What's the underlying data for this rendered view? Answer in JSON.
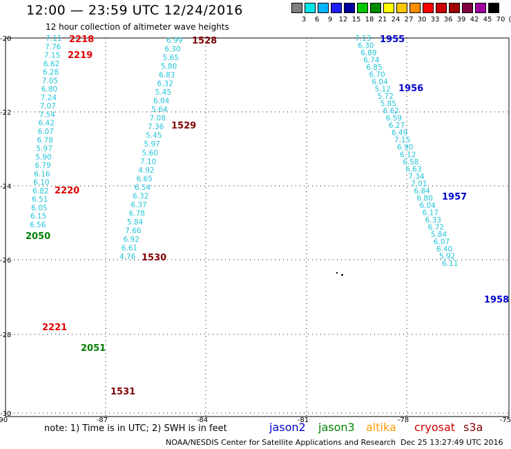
{
  "header": {
    "title": "12:00 — 23:59 UTC 12/24/2016",
    "subtitle": "12 hour collection of altimeter wave heights"
  },
  "colorbar": {
    "colors": [
      "#808080",
      "#00e6e6",
      "#00b4ff",
      "#1e1eff",
      "#0000a0",
      "#00c800",
      "#008c00",
      "#ffff00",
      "#ffc800",
      "#ff8c00",
      "#ff0000",
      "#c80000",
      "#a00000",
      "#800040",
      "#a000a0",
      "#000000"
    ],
    "labels": [
      "3",
      "6",
      "9",
      "12",
      "15",
      "18",
      "21",
      "24",
      "27",
      "30",
      "33",
      "36",
      "39",
      "42",
      "45",
      "70",
      "(ft)"
    ]
  },
  "axes": {
    "y_ticks": [
      "-20",
      "-22",
      "-24",
      "-26",
      "-28",
      "-30"
    ],
    "x_ticks": [
      "-90",
      "-87",
      "-84",
      "-81",
      "-78",
      "-75"
    ]
  },
  "time_labels": [
    {
      "text": "2218",
      "color": "#e00000"
    },
    {
      "text": "2219",
      "color": "#e00000"
    },
    {
      "text": "2220",
      "color": "#e00000"
    },
    {
      "text": "2221",
      "color": "#e00000"
    },
    {
      "text": "2050",
      "color": "#008000"
    },
    {
      "text": "2051",
      "color": "#008000"
    },
    {
      "text": "1528",
      "color": "#800000"
    },
    {
      "text": "1529",
      "color": "#800000"
    },
    {
      "text": "1530",
      "color": "#800000"
    },
    {
      "text": "1531",
      "color": "#800000"
    },
    {
      "text": "1955",
      "color": "#0000cc"
    },
    {
      "text": "1956",
      "color": "#0000cc"
    },
    {
      "text": "1957",
      "color": "#0000cc"
    },
    {
      "text": "1958",
      "color": "#0000cc"
    }
  ],
  "track_values": {
    "cryosat": [
      "7.11",
      "7.76",
      "7.15",
      "6.62",
      "6.28",
      "7.05",
      "6.80",
      "7.24",
      "7.07",
      "7.54",
      "6.42",
      "6.07",
      "6.78",
      "5.97",
      "5.90",
      "6.79",
      "6.16",
      "6.10",
      "6.82",
      "6.51",
      "6.05",
      "6.15",
      "6.56"
    ],
    "track_1528": [
      "6.99",
      "6.30",
      "5.65",
      "5.80",
      "6.83",
      "6.32",
      "5.45",
      "6.04",
      "5.64",
      "7.08",
      "7.36",
      "5.45",
      "5.97",
      "5.60",
      "7.10",
      "4.92",
      "6.65",
      "6.54",
      "6.32",
      "6.37",
      "6.78",
      "5.84",
      "7.66",
      "6.92",
      "6.61",
      "4.76"
    ],
    "jason2": [
      "7.13",
      "6.30",
      "6.89",
      "6.74",
      "6.85",
      "6.70",
      "6.04",
      "5.12",
      "5.72",
      "5.85",
      "6.62",
      "6.59",
      "6.27",
      "6.49",
      "7.15",
      "6.90",
      "6.12",
      "6.58",
      "6.63",
      "7.34",
      "7.01",
      "6.84",
      "6.80",
      "6.04",
      "6.17",
      "6.33",
      "6.72",
      "5.84",
      "6.07",
      "6.40",
      "5.92",
      "6.11"
    ]
  },
  "footer": {
    "note": "note: 1) Time is in UTC; 2) SWH is in feet",
    "legend": [
      {
        "name": "jason2",
        "color": "#0000cc"
      },
      {
        "name": "jason3",
        "color": "#008000"
      },
      {
        "name": "altika",
        "color": "#ff9900"
      },
      {
        "name": "cryosat",
        "color": "#cc0000"
      },
      {
        "name": "s3a",
        "color": "#800000"
      }
    ],
    "credit": "NOAA/NESDIS Center for Satellite Applications and Research",
    "timestamp": "Dec 25 13:27:49 UTC 2016"
  }
}
